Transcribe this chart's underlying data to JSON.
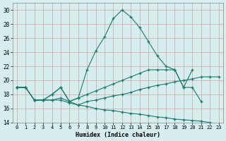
{
  "xlabel": "Humidex (Indice chaleur)",
  "bg_color": "#d6eeee",
  "grid_color": "#c8e0e0",
  "line_color": "#1a7a6e",
  "xlim": [
    -0.5,
    23.5
  ],
  "ylim": [
    14,
    31
  ],
  "xticks": [
    0,
    1,
    2,
    3,
    4,
    5,
    6,
    7,
    8,
    9,
    10,
    11,
    12,
    13,
    14,
    15,
    16,
    17,
    18,
    19,
    20,
    21,
    22,
    23
  ],
  "yticks": [
    14,
    16,
    18,
    20,
    22,
    24,
    26,
    28,
    30
  ],
  "lines": [
    {
      "x": [
        0,
        1,
        2,
        3,
        4,
        5,
        6,
        7,
        8,
        9,
        10,
        11,
        12,
        13,
        14,
        15,
        16,
        17,
        18,
        19,
        20
      ],
      "y": [
        19,
        19,
        17.2,
        17.2,
        18.0,
        19.0,
        17.0,
        17.5,
        21.5,
        24.2,
        26.2,
        28.8,
        30.0,
        29.0,
        27.5,
        25.5,
        23.5,
        22.0,
        21.5,
        19.0,
        21.5
      ]
    },
    {
      "x": [
        0,
        1,
        2,
        3,
        4,
        5,
        6,
        7,
        8,
        9,
        10,
        11,
        12,
        13,
        14,
        15,
        16,
        17,
        18,
        19,
        20,
        21
      ],
      "y": [
        19,
        19,
        17.2,
        17.2,
        18.0,
        19.0,
        17.0,
        17.5,
        18.0,
        18.5,
        19.0,
        19.5,
        20.0,
        20.5,
        21.0,
        21.5,
        21.5,
        21.5,
        21.5,
        19.0,
        19.0,
        17.0
      ]
    },
    {
      "x": [
        0,
        1,
        2,
        3,
        4,
        5,
        6,
        7,
        8,
        9,
        10,
        11,
        12,
        13,
        14,
        15,
        16,
        17,
        18,
        19,
        20,
        21,
        22,
        23
      ],
      "y": [
        19,
        19,
        17.2,
        17.2,
        17.2,
        17.5,
        17.0,
        16.5,
        17.0,
        17.2,
        17.5,
        17.8,
        18.0,
        18.3,
        18.7,
        19.0,
        19.3,
        19.5,
        19.8,
        20.0,
        20.2,
        20.5,
        20.5,
        20.5
      ]
    },
    {
      "x": [
        0,
        1,
        2,
        3,
        4,
        5,
        6,
        7,
        8,
        9,
        10,
        11,
        12,
        13,
        14,
        15,
        16,
        17,
        18,
        19,
        20,
        21,
        22,
        23
      ],
      "y": [
        19,
        19,
        17.2,
        17.2,
        17.2,
        17.2,
        16.8,
        16.5,
        16.3,
        16.0,
        15.8,
        15.7,
        15.5,
        15.3,
        15.2,
        15.0,
        14.8,
        14.7,
        14.5,
        14.4,
        14.3,
        14.2,
        14.0,
        13.8
      ]
    }
  ]
}
